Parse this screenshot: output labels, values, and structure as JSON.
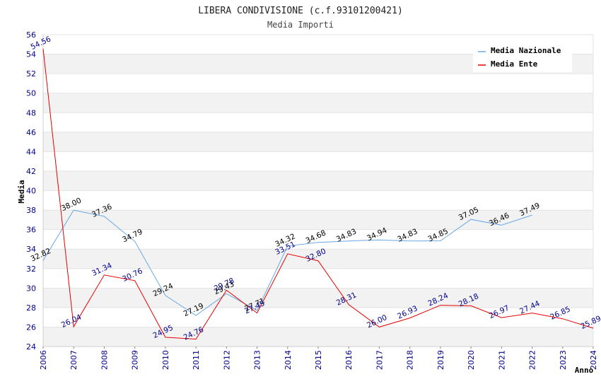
{
  "chart_data": {
    "type": "line",
    "title": "LIBERA CONDIVISIONE (c.f.93101200421)",
    "subtitle": "Media Importi",
    "xlabel": "Anno",
    "ylabel": "Media",
    "ylim": [
      24,
      56
    ],
    "ytick_step": 2,
    "grid": true,
    "legend_position": "top-right",
    "categories": [
      "2006",
      "2007",
      "2008",
      "2009",
      "2010",
      "2011",
      "2012",
      "2013",
      "2014",
      "2015",
      "2016",
      "2017",
      "2018",
      "2019",
      "2020",
      "2021",
      "2022",
      "2023",
      "2024"
    ],
    "series": [
      {
        "name": "Media Nazionale",
        "color": "#6aa8e6",
        "values": [
          32.82,
          38.0,
          37.36,
          34.79,
          29.24,
          27.19,
          29.43,
          27.71,
          34.32,
          34.68,
          34.83,
          34.94,
          34.83,
          34.85,
          37.05,
          36.46,
          37.49,
          null,
          null
        ],
        "labels": [
          "32.82",
          "38.00",
          "37.36",
          "34.79",
          "29.24",
          "27.19",
          "29.43",
          "27.71",
          "34.32",
          "34.68",
          "34.83",
          "34.94",
          "34.83",
          "34.85",
          "37.05",
          "36.46",
          "37.49",
          null,
          null
        ]
      },
      {
        "name": "Media Ente",
        "color": "#e60000",
        "values": [
          54.56,
          26.04,
          31.34,
          30.76,
          24.95,
          24.76,
          29.78,
          27.45,
          33.51,
          32.8,
          28.31,
          26.0,
          26.93,
          28.24,
          28.18,
          26.97,
          27.44,
          26.85,
          25.89
        ],
        "labels": [
          "54.56",
          "26.04",
          "31.34",
          "30.76",
          "24.95",
          "24.76",
          "29.78",
          "27.45",
          "33.51",
          "32.80",
          "28.31",
          "26.00",
          "26.93",
          "28.24",
          "28.18",
          "26.97",
          "27.44",
          "26.85",
          "25.89"
        ]
      }
    ]
  }
}
